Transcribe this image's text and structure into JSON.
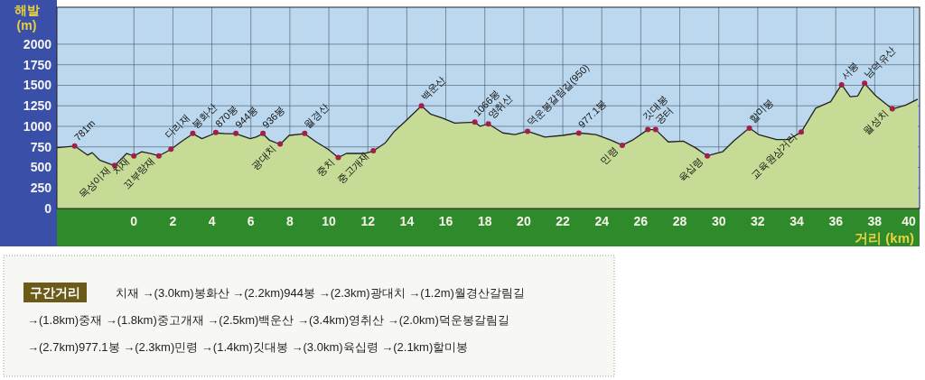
{
  "chart_data": {
    "type": "area",
    "xlabel": "거리 (km)",
    "ylabel": "해발 (m)",
    "x": [
      -3.95,
      -3.04,
      -2.38,
      -2.14,
      -1.76,
      -0.99,
      -0.37,
      0,
      0.4,
      0.86,
      1.28,
      1.9,
      2.41,
      3.02,
      3.49,
      4.2,
      4.72,
      5.23,
      5.96,
      6.26,
      6.62,
      6.96,
      7.5,
      7.96,
      8.76,
      9.35,
      9.97,
      10.48,
      10.9,
      11.82,
      12.28,
      12.9,
      13.36,
      13.83,
      14.75,
      15.21,
      15.83,
      16.45,
      17.49,
      17.76,
      18.18,
      18.92,
      19.54,
      20.19,
      21.08,
      22.0,
      22.82,
      23.7,
      24.48,
      25.05,
      25.56,
      26.36,
      26.76,
      27.41,
      28.18,
      28.8,
      29.41,
      30.19,
      30.8,
      31.57,
      32.04,
      32.96,
      33.58,
      34.23,
      34.97,
      35.74,
      36.3,
      36.74,
      37.13,
      37.48,
      38.06,
      38.9,
      39.6,
      40.2
    ],
    "values": [
      740,
      760,
      650,
      680,
      590,
      520,
      670,
      640,
      690,
      670,
      640,
      720,
      810,
      910,
      850,
      920,
      910,
      910,
      850,
      870,
      910,
      830,
      780,
      890,
      910,
      810,
      720,
      620,
      670,
      670,
      700,
      800,
      940,
      1040,
      1250,
      1150,
      1100,
      1040,
      1050,
      1000,
      1030,
      920,
      900,
      940,
      870,
      890,
      920,
      900,
      830,
      770,
      830,
      960,
      960,
      810,
      820,
      740,
      640,
      690,
      830,
      980,
      900,
      840,
      840,
      930,
      1220,
      1300,
      1510,
      1360,
      1370,
      1520,
      1370,
      1210,
      1260,
      1330
    ],
    "color": "#c6dc96",
    "xlim": [
      -3.95,
      40.3
    ],
    "ylim": [
      0,
      2450
    ],
    "xticks": [
      0,
      2,
      4,
      6,
      8,
      10,
      12,
      14,
      16,
      18,
      20,
      22,
      24,
      26,
      28,
      30,
      32,
      34,
      36,
      38,
      40
    ],
    "yticks": [
      0,
      250,
      500,
      750,
      1000,
      1250,
      1500,
      1750,
      2000
    ],
    "grid": true,
    "annotations": [
      {
        "text": "781m",
        "x": -3.04,
        "y": 760
      },
      {
        "text": "목성이재",
        "x": -0.99,
        "y": 525
      },
      {
        "text": "치재",
        "x": 0,
        "y": 640
      },
      {
        "text": "꼬부랑재",
        "x": 1.28,
        "y": 640
      },
      {
        "text": "다리재",
        "x": 1.9,
        "y": 722
      },
      {
        "text": "봉화산",
        "x": 3.02,
        "y": 914
      },
      {
        "text": "870봉",
        "x": 4.2,
        "y": 925
      },
      {
        "text": "944봉",
        "x": 5.23,
        "y": 914
      },
      {
        "text": "936봉",
        "x": 6.62,
        "y": 914
      },
      {
        "text": "광대치",
        "x": 7.5,
        "y": 785
      },
      {
        "text": "월경산",
        "x": 8.76,
        "y": 914
      },
      {
        "text": "중치",
        "x": 10.48,
        "y": 622
      },
      {
        "text": "중고개재",
        "x": 12.28,
        "y": 703
      },
      {
        "text": "백운산",
        "x": 14.75,
        "y": 1251
      },
      {
        "text": "1066봉",
        "x": 17.49,
        "y": 1051
      },
      {
        "text": "영취산",
        "x": 18.18,
        "y": 1029
      },
      {
        "text": "덕운봉갈림길(950)",
        "x": 20.19,
        "y": 940
      },
      {
        "text": "977.1봉",
        "x": 22.82,
        "y": 918
      },
      {
        "text": "민령",
        "x": 25.05,
        "y": 769
      },
      {
        "text": "깃대봉",
        "x": 26.36,
        "y": 962
      },
      {
        "text": "공터",
        "x": 26.76,
        "y": 962
      },
      {
        "text": "육십령",
        "x": 29.41,
        "y": 640
      },
      {
        "text": "할미봉",
        "x": 31.57,
        "y": 977
      },
      {
        "text": "교육원삼거리",
        "x": 34.23,
        "y": 932
      },
      {
        "text": "서봉",
        "x": 36.3,
        "y": 1506
      },
      {
        "text": "남덕유산",
        "x": 37.48,
        "y": 1524
      },
      {
        "text": "월성치",
        "x": 38.9,
        "y": 1213
      },
      "구간거리",
      "치재 →(3.0km)봉화산 →(2.2km)944봉 →(2.3km)광대치 →(1.2m)월경산갈림길",
      "→(1.8km)중재 →(1.8km)중고개재 →(2.5km)백운산 →(3.4km)영취산 →(2.0km)덕운봉갈림길",
      "→(2.7km)977.1봉 →(2.3km)민령 →(1.4km)깃대봉 →(3.0km)육십령 →(2.1km)할미봉"
    ]
  }
}
